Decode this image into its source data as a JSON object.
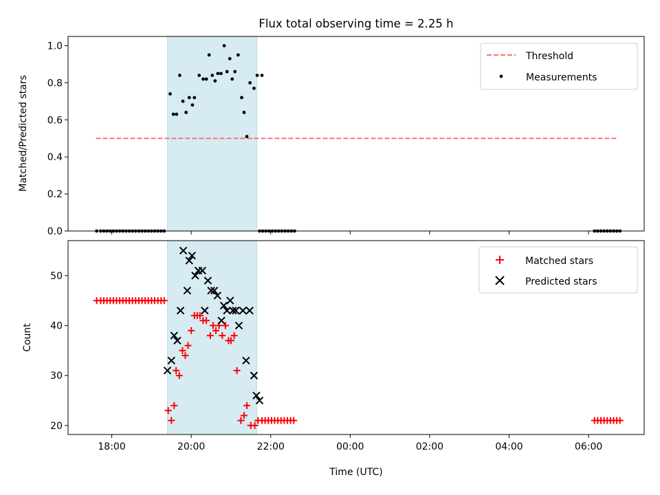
{
  "chart_data": [
    {
      "type": "scatter",
      "title": "Flux total observing time = 2.25 h",
      "xlabel": "",
      "ylabel": "Matched/Predicted stars",
      "x_unit": "time (UTC), hours; values past 24 are next day",
      "xlim": [
        16.9,
        31.4
      ],
      "ylim": [
        0,
        1.05
      ],
      "yticks": [
        0.0,
        0.2,
        0.4,
        0.6,
        0.8,
        1.0
      ],
      "ytick_labels": [
        "0.0",
        "0.2",
        "0.4",
        "0.6",
        "0.8",
        "1.0"
      ],
      "observing_window": [
        19.4,
        21.65
      ],
      "legend_position": "upper right",
      "series": [
        {
          "name": "Threshold",
          "kind": "dashed-line",
          "color": "#ff7070",
          "x": [
            17.6,
            30.7
          ],
          "y": [
            0.5,
            0.5
          ]
        },
        {
          "name": "Measurements",
          "kind": "dots",
          "color": "#000000",
          "x": [
            17.62,
            17.72,
            17.8,
            17.88,
            17.96,
            18.04,
            18.12,
            18.2,
            18.28,
            18.36,
            18.44,
            18.52,
            18.6,
            18.68,
            18.76,
            18.84,
            18.92,
            19.0,
            19.08,
            19.16,
            19.24,
            19.32,
            19.47,
            19.55,
            19.63,
            19.71,
            19.79,
            19.87,
            19.95,
            20.03,
            20.08,
            20.2,
            20.3,
            20.38,
            20.45,
            20.53,
            20.6,
            20.67,
            20.75,
            20.83,
            20.9,
            20.97,
            21.03,
            21.1,
            21.18,
            21.27,
            21.33,
            21.4,
            21.48,
            21.58,
            21.66,
            21.78,
            21.72,
            21.8,
            21.88,
            21.96,
            22.04,
            22.12,
            22.2,
            22.28,
            22.36,
            22.44,
            22.52,
            22.6,
            30.15,
            30.23,
            30.31,
            30.39,
            30.47,
            30.55,
            30.63,
            30.71,
            30.79
          ],
          "y": [
            0,
            0,
            0,
            0,
            0,
            0,
            0,
            0,
            0,
            0,
            0,
            0,
            0,
            0,
            0,
            0,
            0,
            0,
            0,
            0,
            0,
            0,
            0.74,
            0.63,
            0.63,
            0.84,
            0.7,
            0.64,
            0.72,
            0.68,
            0.72,
            0.84,
            0.82,
            0.82,
            0.95,
            0.84,
            0.81,
            0.85,
            0.85,
            1.0,
            0.86,
            0.93,
            0.82,
            0.86,
            0.95,
            0.72,
            0.64,
            0.51,
            0.8,
            0.77,
            0.84,
            0.84,
            0,
            0,
            0,
            0,
            0,
            0,
            0,
            0,
            0,
            0,
            0,
            0,
            0,
            0,
            0,
            0,
            0,
            0,
            0,
            0,
            0
          ]
        }
      ]
    },
    {
      "type": "scatter",
      "title": "",
      "xlabel": "Time (UTC)",
      "ylabel": "Count",
      "xlim": [
        16.9,
        31.4
      ],
      "ylim": [
        18.2,
        57
      ],
      "xticks": [
        18,
        20,
        22,
        24,
        26,
        28,
        30
      ],
      "xtick_labels": [
        "18:00",
        "20:00",
        "22:00",
        "00:00",
        "02:00",
        "04:00",
        "06:00"
      ],
      "yticks": [
        20,
        30,
        40,
        50
      ],
      "ytick_labels": [
        "20",
        "30",
        "40",
        "50"
      ],
      "observing_window": [
        19.4,
        21.65
      ],
      "legend_position": "upper right",
      "series": [
        {
          "name": "Matched stars",
          "kind": "plus",
          "color": "#ff0000",
          "x": [
            17.62,
            17.72,
            17.8,
            17.88,
            17.96,
            18.04,
            18.12,
            18.2,
            18.28,
            18.36,
            18.44,
            18.52,
            18.6,
            18.68,
            18.76,
            18.84,
            18.92,
            19.0,
            19.08,
            19.16,
            19.24,
            19.32,
            19.42,
            19.5,
            19.57,
            19.62,
            19.7,
            19.78,
            19.85,
            19.92,
            20.0,
            20.08,
            20.15,
            20.22,
            20.3,
            20.38,
            20.48,
            20.55,
            20.62,
            20.7,
            20.78,
            20.86,
            20.94,
            21.0,
            21.08,
            21.15,
            21.25,
            21.33,
            21.4,
            21.5,
            21.6,
            21.68,
            21.78,
            21.86,
            21.94,
            22.02,
            22.1,
            22.18,
            22.26,
            22.34,
            22.42,
            22.5,
            22.58,
            30.15,
            30.23,
            30.31,
            30.39,
            30.47,
            30.55,
            30.63,
            30.71,
            30.79
          ],
          "y": [
            45,
            45,
            45,
            45,
            45,
            45,
            45,
            45,
            45,
            45,
            45,
            45,
            45,
            45,
            45,
            45,
            45,
            45,
            45,
            45,
            45,
            45,
            23,
            21,
            24,
            31,
            30,
            35,
            34,
            36,
            39,
            42,
            42,
            42,
            41,
            41,
            38,
            40,
            39,
            40,
            38,
            40,
            37,
            37,
            38,
            31,
            21,
            22,
            24,
            20,
            20,
            21,
            21,
            21,
            21,
            21,
            21,
            21,
            21,
            21,
            21,
            21,
            21,
            21,
            21,
            21,
            21,
            21,
            21,
            21,
            21,
            21
          ]
        },
        {
          "name": "Predicted stars",
          "kind": "x",
          "color": "#000000",
          "x": [
            19.4,
            19.5,
            19.57,
            19.65,
            19.73,
            19.8,
            19.9,
            19.95,
            20.02,
            20.1,
            20.18,
            20.28,
            20.34,
            20.42,
            20.5,
            20.58,
            20.66,
            20.76,
            20.82,
            20.9,
            20.98,
            21.05,
            21.12,
            21.2,
            21.3,
            21.38,
            21.47,
            21.58,
            21.64,
            21.72
          ],
          "y": [
            31,
            33,
            38,
            37,
            43,
            55,
            47,
            53,
            54,
            50,
            51,
            51,
            43,
            49,
            47,
            47,
            46,
            41,
            44,
            43,
            45,
            43,
            43,
            40,
            43,
            33,
            43,
            30,
            26,
            25
          ]
        }
      ]
    }
  ]
}
